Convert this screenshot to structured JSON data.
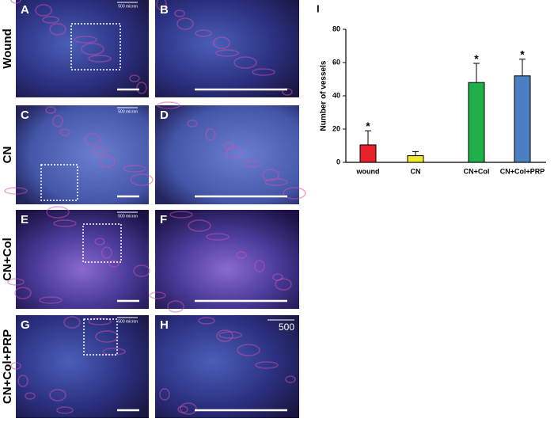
{
  "figure": {
    "rows": [
      "Wound",
      "CN",
      "CN+Col",
      "CN+Col+PRP"
    ],
    "panels": [
      {
        "letter": "A",
        "scale_text": "500 micron"
      },
      {
        "letter": "B"
      },
      {
        "letter": "C",
        "scale_text": "500 micron"
      },
      {
        "letter": "D"
      },
      {
        "letter": "E",
        "scale_text": "500 micron"
      },
      {
        "letter": "F"
      },
      {
        "letter": "G",
        "scale_text": "500 micron"
      },
      {
        "letter": "H",
        "scale_text": "500"
      }
    ]
  },
  "chart_data": {
    "type": "bar",
    "panel_letter": "I",
    "y_label": "Number of vessels",
    "categories": [
      "wound",
      "CN",
      "CN+Col",
      "CN+Col+PRP"
    ],
    "values": [
      10.5,
      4,
      48,
      52
    ],
    "errors": [
      8.5,
      2.5,
      11.5,
      10
    ],
    "colors": [
      "#e8202a",
      "#f1ea2a",
      "#1fb04b",
      "#4c7fc1"
    ],
    "annotations": [
      {
        "category": "wound",
        "text": "*"
      },
      {
        "category": "CN+Col",
        "text": "*"
      },
      {
        "category": "CN+Col+PRP",
        "text": "*"
      }
    ],
    "ylim": [
      0,
      80
    ],
    "yticks": [
      0,
      20,
      40,
      60,
      80
    ]
  }
}
